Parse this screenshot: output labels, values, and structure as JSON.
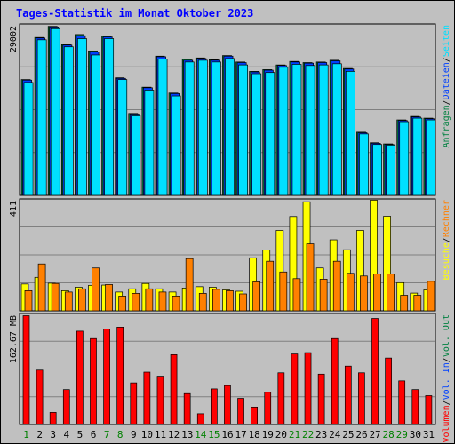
{
  "title": "Tages-Statistik im Monat Oktober 2023",
  "colors": {
    "hits": "#008040",
    "files": "#0040ff",
    "pages": "#00e0ff",
    "visits": "#ffff00",
    "sites": "#ff8000",
    "kbytes": "#ff0000",
    "weekend": "#008000",
    "weekday": "#000000"
  },
  "legend_right": {
    "top": [
      "Anfragen",
      "/",
      "Dateien",
      "/",
      "Seiten"
    ],
    "middle": [
      "Besuche",
      "/",
      "Rechner"
    ],
    "bottom": [
      "Volumen",
      "/",
      "Vol. In",
      "/",
      "Vol. Out"
    ]
  },
  "chart_data": [
    {
      "type": "bar",
      "panel": "top",
      "ylabel": "29002",
      "ymax": 29002,
      "categories": [
        "1",
        "2",
        "3",
        "4",
        "5",
        "6",
        "7",
        "8",
        "9",
        "10",
        "11",
        "12",
        "13",
        "14",
        "15",
        "16",
        "17",
        "18",
        "19",
        "20",
        "21",
        "22",
        "23",
        "24",
        "25",
        "26",
        "27",
        "28",
        "29",
        "30",
        "31"
      ],
      "weekend": [
        "1",
        "7",
        "8",
        "14",
        "15",
        "21",
        "22",
        "28",
        "29"
      ],
      "series": [
        {
          "name": "Anfragen",
          "values": [
            19800,
            27000,
            28900,
            25800,
            27500,
            24700,
            27200,
            20100,
            14000,
            18500,
            23800,
            17500,
            23300,
            23500,
            23200,
            23900,
            22800,
            21200,
            21500,
            22300,
            22900,
            22700,
            22800,
            23100,
            21700,
            10800,
            9000,
            8800,
            12900,
            13500,
            13200
          ]
        },
        {
          "name": "Dateien",
          "values": [
            19700,
            26900,
            28800,
            25700,
            27300,
            24500,
            27100,
            20000,
            13900,
            18400,
            23700,
            17400,
            23100,
            23400,
            23100,
            23800,
            22700,
            21100,
            21400,
            22200,
            22800,
            22600,
            22700,
            23000,
            21600,
            10700,
            8900,
            8700,
            12800,
            13400,
            13100
          ]
        },
        {
          "name": "Seiten",
          "values": [
            19300,
            26600,
            28500,
            25400,
            26800,
            24000,
            26800,
            19800,
            13600,
            18000,
            23300,
            17000,
            22800,
            23100,
            22800,
            23400,
            22300,
            20800,
            21000,
            21900,
            22400,
            22200,
            22300,
            22500,
            21200,
            10500,
            8700,
            8600,
            12600,
            13200,
            12900
          ]
        }
      ]
    },
    {
      "type": "bar",
      "panel": "middle",
      "ylabel": "411",
      "ymax": 411,
      "categories": [
        "1",
        "2",
        "3",
        "4",
        "5",
        "6",
        "7",
        "8",
        "9",
        "10",
        "11",
        "12",
        "13",
        "14",
        "15",
        "16",
        "17",
        "18",
        "19",
        "20",
        "21",
        "22",
        "23",
        "24",
        "25",
        "26",
        "27",
        "28",
        "29",
        "30",
        "31"
      ],
      "series": [
        {
          "name": "Besuche",
          "values": [
            100,
            125,
            103,
            75,
            88,
            95,
            96,
            70,
            82,
            102,
            82,
            70,
            85,
            90,
            88,
            78,
            73,
            198,
            227,
            300,
            352,
            407,
            160,
            265,
            228,
            300,
            413,
            353,
            105,
            66,
            78
          ]
        },
        {
          "name": "Rechner",
          "values": [
            75,
            175,
            102,
            70,
            82,
            160,
            98,
            55,
            65,
            82,
            70,
            55,
            195,
            65,
            80,
            75,
            63,
            108,
            185,
            145,
            120,
            250,
            118,
            185,
            140,
            130,
            138,
            137,
            58,
            58,
            110
          ]
        }
      ]
    },
    {
      "type": "bar",
      "panel": "bottom",
      "ylabel": "162.67 MB",
      "ymax": 162.67,
      "categories": [
        "1",
        "2",
        "3",
        "4",
        "5",
        "6",
        "7",
        "8",
        "9",
        "10",
        "11",
        "12",
        "13",
        "14",
        "15",
        "16",
        "17",
        "18",
        "19",
        "20",
        "21",
        "22",
        "23",
        "24",
        "25",
        "26",
        "27",
        "28",
        "29",
        "30",
        "31"
      ],
      "series": [
        {
          "name": "Volumen",
          "values": [
            162,
            81,
            18,
            52,
            139,
            128,
            142,
            145,
            62,
            78,
            72,
            104,
            46,
            16,
            53,
            58,
            39,
            26,
            48,
            77,
            105,
            107,
            75,
            128,
            87,
            77,
            158,
            99,
            65,
            52,
            43
          ]
        }
      ]
    }
  ]
}
